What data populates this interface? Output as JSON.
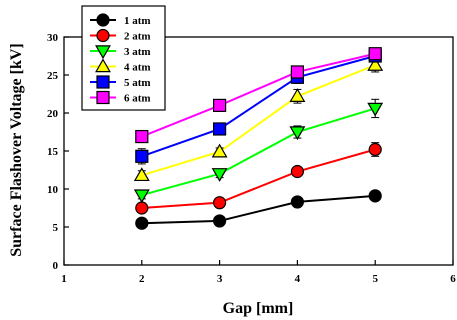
{
  "chart_data": {
    "type": "line",
    "xlabel": "Gap [mm]",
    "ylabel": "Surface Flashover Voltage [kV]",
    "xlim": [
      1,
      6
    ],
    "ylim": [
      0,
      30
    ],
    "x_ticks": [
      1,
      2,
      3,
      4,
      5,
      6
    ],
    "y_ticks": [
      0,
      5,
      10,
      15,
      20,
      25,
      30
    ],
    "grid": false,
    "legend_position": "top-left",
    "x": [
      2,
      3,
      4,
      5
    ],
    "series": [
      {
        "name": "1 atm",
        "marker": "circle",
        "color": "#000000",
        "values": [
          5.5,
          5.8,
          8.3,
          9.1
        ],
        "errors": [
          0.3,
          0.3,
          0.4,
          0.4
        ]
      },
      {
        "name": "2 atm",
        "marker": "circle",
        "color": "#ff0000",
        "values": [
          7.5,
          8.2,
          12.3,
          15.2
        ],
        "errors": [
          0.4,
          0.4,
          0.6,
          0.9
        ]
      },
      {
        "name": "3 atm",
        "marker": "triangle-down",
        "color": "#00ff00",
        "values": [
          9.2,
          12.0,
          17.5,
          20.6
        ],
        "errors": [
          0.5,
          0.5,
          0.8,
          1.2
        ]
      },
      {
        "name": "4 atm",
        "marker": "triangle-up",
        "color": "#ffff00",
        "values": [
          11.8,
          14.9,
          22.2,
          26.3
        ],
        "errors": [
          0.6,
          0.5,
          0.9,
          0.9
        ]
      },
      {
        "name": "5 atm",
        "marker": "square",
        "color": "#0000ff",
        "values": [
          14.3,
          17.9,
          24.7,
          27.5
        ],
        "errors": [
          1.0,
          0.5,
          0.8,
          0.5
        ]
      },
      {
        "name": "6 atm",
        "marker": "square",
        "color": "#ff00ff",
        "values": [
          16.9,
          21.0,
          25.4,
          27.8
        ],
        "errors": [
          0.5,
          0.4,
          0.5,
          0.5
        ]
      }
    ]
  }
}
